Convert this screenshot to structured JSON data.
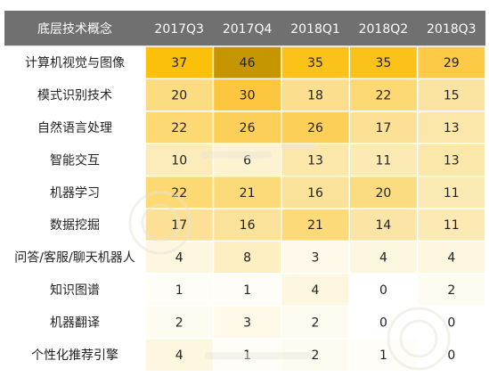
{
  "chart_data": {
    "type": "heatmap",
    "corner_label": "底层技术概念",
    "columns": [
      "2017Q3",
      "2017Q4",
      "2018Q1",
      "2018Q2",
      "2018Q3"
    ],
    "rows": [
      {
        "label": "计算机视觉与图像",
        "values": [
          37,
          46,
          35,
          35,
          29
        ]
      },
      {
        "label": "模式识别技术",
        "values": [
          20,
          30,
          18,
          22,
          15
        ]
      },
      {
        "label": "自然语言处理",
        "values": [
          22,
          26,
          26,
          17,
          13
        ]
      },
      {
        "label": "智能交互",
        "values": [
          10,
          6,
          13,
          11,
          13
        ]
      },
      {
        "label": "机器学习",
        "values": [
          22,
          21,
          16,
          20,
          11
        ]
      },
      {
        "label": "数据挖掘",
        "values": [
          17,
          16,
          21,
          14,
          11
        ]
      },
      {
        "label": "问答/客服/聊天机器人",
        "values": [
          4,
          8,
          3,
          4,
          4
        ]
      },
      {
        "label": "知识图谱",
        "values": [
          1,
          1,
          4,
          0,
          2
        ]
      },
      {
        "label": "机器翻译",
        "values": [
          2,
          3,
          2,
          0,
          0
        ]
      },
      {
        "label": "个性化推荐引擎",
        "values": [
          4,
          1,
          2,
          1,
          0
        ]
      }
    ],
    "value_range": [
      0,
      46
    ],
    "colors": {
      "header_bg": "#707070",
      "header_text": "#ffffff",
      "cell_text": "#222222",
      "divider": "#ffffff",
      "scale": [
        "#ffffff",
        "#fdf0c4",
        "#fbe3a0",
        "#fcd76c",
        "#fcc63a",
        "#fbc000",
        "#c69600"
      ]
    }
  }
}
